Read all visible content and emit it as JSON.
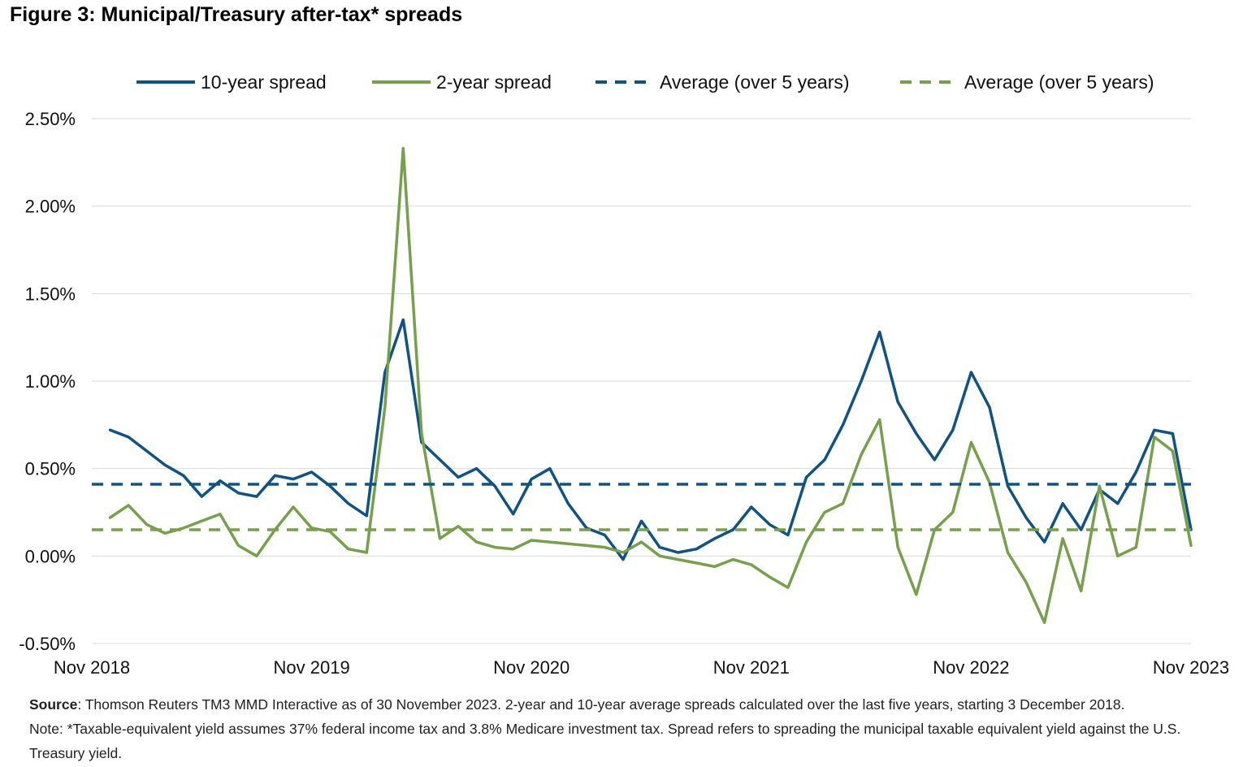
{
  "figure": {
    "title": "Figure 3: Municipal/Treasury after-tax* spreads"
  },
  "chart_data": {
    "type": "line",
    "title": "Figure 3: Municipal/Treasury after-tax* spreads",
    "xlabel": "",
    "ylabel": "",
    "x_range": [
      "Nov 2018",
      "Nov 2023"
    ],
    "x_ticks": [
      "Nov 2018",
      "Nov 2019",
      "Nov 2020",
      "Nov 2021",
      "Nov 2022",
      "Nov 2023"
    ],
    "y_ticks": [
      "2.50%",
      "2.00%",
      "1.50%",
      "1.00%",
      "0.50%",
      "0.00%",
      "-0.50%"
    ],
    "y_tick_values": [
      2.5,
      2.0,
      1.5,
      1.0,
      0.5,
      0.0,
      -0.5
    ],
    "ylim": [
      -0.5,
      2.5
    ],
    "grid": "horizontal",
    "legend_position": "top",
    "series": [
      {
        "name": "10-year spread",
        "color": "#0f5384",
        "style": "solid",
        "points": [
          [
            "2018-12",
            0.72
          ],
          [
            "2019-01",
            0.68
          ],
          [
            "2019-02",
            0.6
          ],
          [
            "2019-03",
            0.52
          ],
          [
            "2019-04",
            0.46
          ],
          [
            "2019-05",
            0.34
          ],
          [
            "2019-06",
            0.43
          ],
          [
            "2019-07",
            0.36
          ],
          [
            "2019-08",
            0.34
          ],
          [
            "2019-09",
            0.46
          ],
          [
            "2019-10",
            0.44
          ],
          [
            "2019-11",
            0.48
          ],
          [
            "2019-12",
            0.4
          ],
          [
            "2020-01",
            0.3
          ],
          [
            "2020-02",
            0.23
          ],
          [
            "2020-03",
            1.05
          ],
          [
            "2020-04",
            1.35
          ],
          [
            "2020-05",
            0.65
          ],
          [
            "2020-06",
            0.55
          ],
          [
            "2020-07",
            0.45
          ],
          [
            "2020-08",
            0.5
          ],
          [
            "2020-09",
            0.4
          ],
          [
            "2020-10",
            0.24
          ],
          [
            "2020-11",
            0.44
          ],
          [
            "2020-12",
            0.5
          ],
          [
            "2021-01",
            0.3
          ],
          [
            "2021-02",
            0.16
          ],
          [
            "2021-03",
            0.12
          ],
          [
            "2021-04",
            -0.02
          ],
          [
            "2021-05",
            0.2
          ],
          [
            "2021-06",
            0.05
          ],
          [
            "2021-07",
            0.02
          ],
          [
            "2021-08",
            0.04
          ],
          [
            "2021-09",
            0.1
          ],
          [
            "2021-10",
            0.15
          ],
          [
            "2021-11",
            0.28
          ],
          [
            "2021-12",
            0.18
          ],
          [
            "2022-01",
            0.12
          ],
          [
            "2022-02",
            0.45
          ],
          [
            "2022-03",
            0.55
          ],
          [
            "2022-04",
            0.75
          ],
          [
            "2022-05",
            1.0
          ],
          [
            "2022-06",
            1.28
          ],
          [
            "2022-07",
            0.88
          ],
          [
            "2022-08",
            0.7
          ],
          [
            "2022-09",
            0.55
          ],
          [
            "2022-10",
            0.72
          ],
          [
            "2022-11",
            1.05
          ],
          [
            "2022-12",
            0.85
          ],
          [
            "2023-01",
            0.4
          ],
          [
            "2023-02",
            0.22
          ],
          [
            "2023-03",
            0.08
          ],
          [
            "2023-04",
            0.3
          ],
          [
            "2023-05",
            0.15
          ],
          [
            "2023-06",
            0.38
          ],
          [
            "2023-07",
            0.3
          ],
          [
            "2023-08",
            0.48
          ],
          [
            "2023-09",
            0.72
          ],
          [
            "2023-10",
            0.7
          ],
          [
            "2023-11",
            0.15
          ]
        ]
      },
      {
        "name": "2-year spread",
        "color": "#77a04a",
        "style": "solid",
        "points": [
          [
            "2018-12",
            0.22
          ],
          [
            "2019-01",
            0.29
          ],
          [
            "2019-02",
            0.18
          ],
          [
            "2019-03",
            0.13
          ],
          [
            "2019-04",
            0.16
          ],
          [
            "2019-05",
            0.2
          ],
          [
            "2019-06",
            0.24
          ],
          [
            "2019-07",
            0.06
          ],
          [
            "2019-08",
            0.0
          ],
          [
            "2019-09",
            0.15
          ],
          [
            "2019-10",
            0.28
          ],
          [
            "2019-11",
            0.16
          ],
          [
            "2019-12",
            0.14
          ],
          [
            "2020-01",
            0.04
          ],
          [
            "2020-02",
            0.02
          ],
          [
            "2020-03",
            0.85
          ],
          [
            "2020-04",
            2.33
          ],
          [
            "2020-05",
            0.7
          ],
          [
            "2020-06",
            0.1
          ],
          [
            "2020-07",
            0.17
          ],
          [
            "2020-08",
            0.08
          ],
          [
            "2020-09",
            0.05
          ],
          [
            "2020-10",
            0.04
          ],
          [
            "2020-11",
            0.09
          ],
          [
            "2020-12",
            0.08
          ],
          [
            "2021-01",
            0.07
          ],
          [
            "2021-02",
            0.06
          ],
          [
            "2021-03",
            0.05
          ],
          [
            "2021-04",
            0.02
          ],
          [
            "2021-05",
            0.08
          ],
          [
            "2021-06",
            0.0
          ],
          [
            "2021-07",
            -0.02
          ],
          [
            "2021-08",
            -0.04
          ],
          [
            "2021-09",
            -0.06
          ],
          [
            "2021-10",
            -0.02
          ],
          [
            "2021-11",
            -0.05
          ],
          [
            "2021-12",
            -0.12
          ],
          [
            "2022-01",
            -0.18
          ],
          [
            "2022-02",
            0.08
          ],
          [
            "2022-03",
            0.25
          ],
          [
            "2022-04",
            0.3
          ],
          [
            "2022-05",
            0.58
          ],
          [
            "2022-06",
            0.78
          ],
          [
            "2022-07",
            0.05
          ],
          [
            "2022-08",
            -0.22
          ],
          [
            "2022-09",
            0.15
          ],
          [
            "2022-10",
            0.25
          ],
          [
            "2022-11",
            0.65
          ],
          [
            "2022-12",
            0.42
          ],
          [
            "2023-01",
            0.02
          ],
          [
            "2023-02",
            -0.15
          ],
          [
            "2023-03",
            -0.38
          ],
          [
            "2023-04",
            0.1
          ],
          [
            "2023-05",
            -0.2
          ],
          [
            "2023-06",
            0.4
          ],
          [
            "2023-07",
            0.0
          ],
          [
            "2023-08",
            0.05
          ],
          [
            "2023-09",
            0.68
          ],
          [
            "2023-10",
            0.6
          ],
          [
            "2023-11",
            0.06
          ]
        ]
      },
      {
        "name": "Average (over 5 years)",
        "color": "#0f5384",
        "style": "dashed",
        "value": 0.41
      },
      {
        "name": "Average (over 5 years)",
        "color": "#77a04a",
        "style": "dashed",
        "value": 0.15
      }
    ]
  },
  "footnotes": {
    "source_label": "Source",
    "source_text": ": Thomson Reuters TM3 MMD Interactive as of 30 November 2023. 2-year and 10-year average spreads calculated over the last five years, starting 3 December 2018.",
    "note_text": "Note: *Taxable-equivalent yield assumes 37% federal income tax and 3.8% Medicare investment tax. Spread refers to spreading the municipal taxable equivalent yield against the U.S. Treasury yield."
  }
}
